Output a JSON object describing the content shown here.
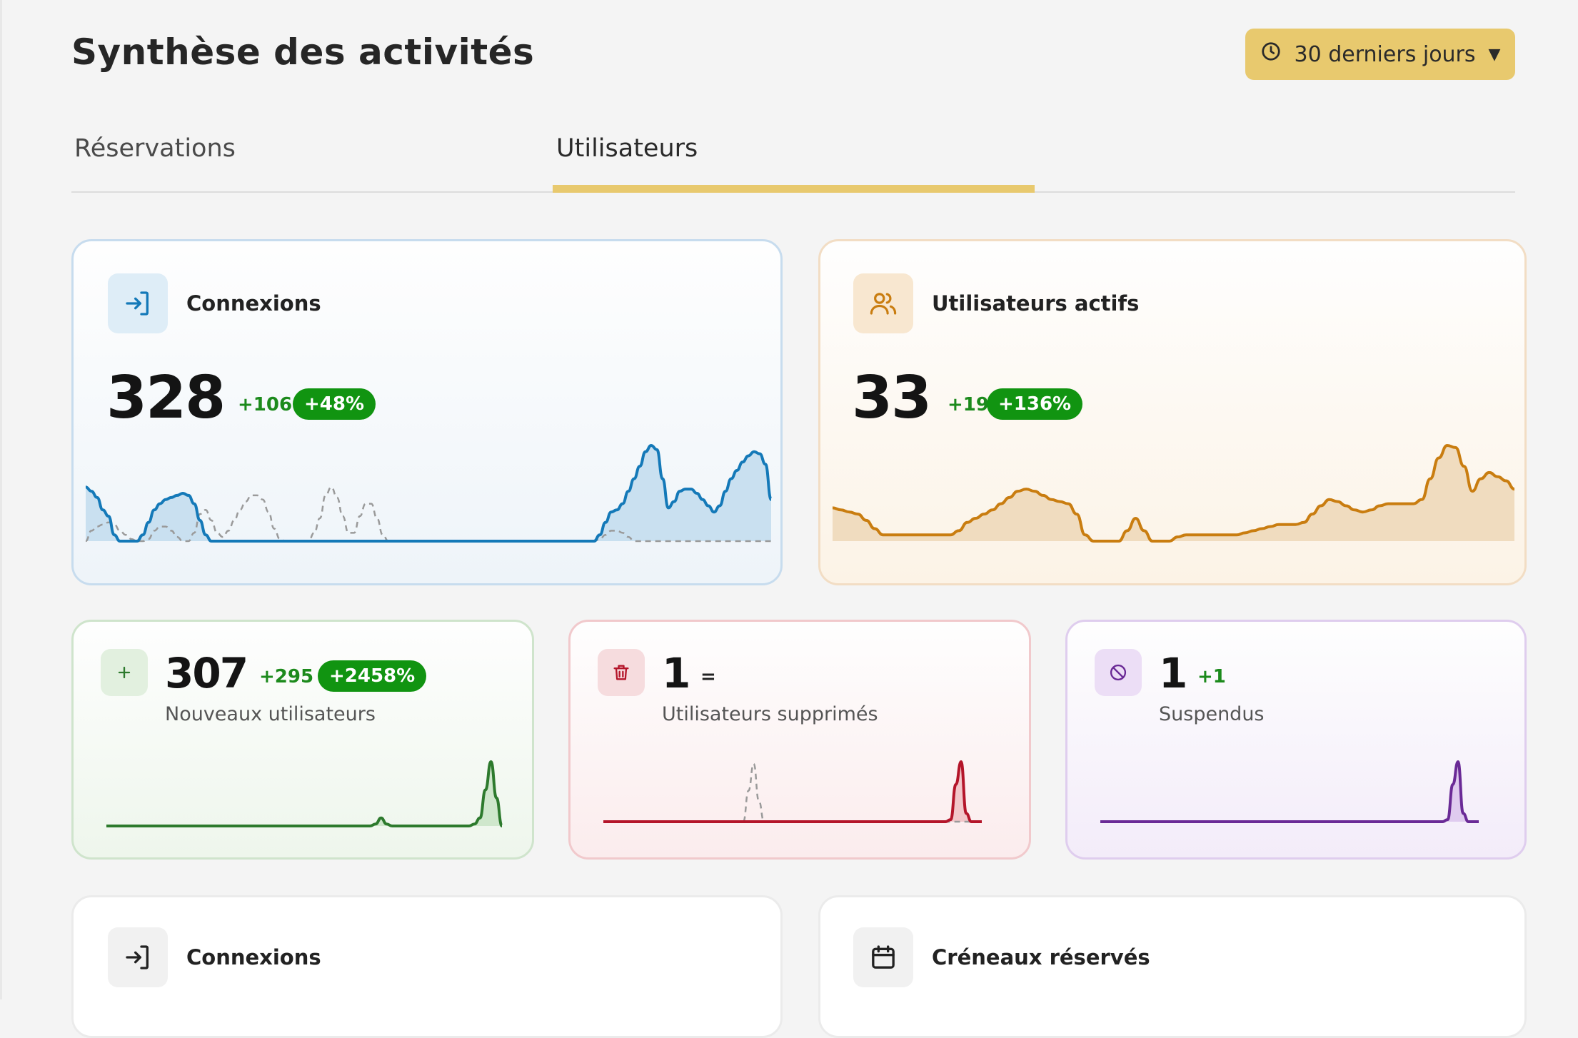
{
  "header": {
    "title": "Synthèse des activités",
    "period_label": "30 derniers jours"
  },
  "tabs": [
    {
      "label": "Réservations",
      "active": false
    },
    {
      "label": "Utilisateurs",
      "active": true
    }
  ],
  "accent_color": "#e8c96e",
  "cards": {
    "connexions": {
      "title": "Connexions",
      "icon": "login-icon",
      "value": "328",
      "delta": "+106",
      "pct": "+48%",
      "color": "#1479b8",
      "fill": "#c9e0f0",
      "series": [
        52,
        48,
        42,
        30,
        24,
        6,
        0,
        0,
        0,
        0,
        6,
        18,
        30,
        36,
        40,
        42,
        44,
        46,
        44,
        36,
        20,
        6,
        0,
        0,
        0,
        0,
        0,
        0,
        0,
        0,
        0,
        0,
        0,
        0,
        0,
        0,
        0,
        0,
        0,
        0,
        0,
        0,
        0,
        0,
        0,
        0,
        0,
        0,
        0,
        0,
        0,
        0,
        0,
        0,
        0,
        0,
        0,
        0,
        0,
        0,
        0,
        0,
        0,
        0,
        0,
        0,
        0,
        0,
        0,
        0,
        0,
        0,
        0,
        0,
        0,
        0,
        0,
        0,
        0,
        0,
        0,
        0,
        0,
        0,
        0,
        0,
        0,
        0,
        0,
        0,
        6,
        18,
        28,
        30,
        36,
        48,
        60,
        72,
        86,
        92,
        88,
        60,
        32,
        38,
        48,
        50,
        50,
        46,
        40,
        34,
        28,
        34,
        48,
        60,
        68,
        76,
        82,
        86,
        84,
        74,
        40
      ],
      "previous": [
        0,
        10,
        14,
        16,
        18,
        16,
        10,
        6,
        2,
        0,
        0,
        2,
        10,
        14,
        14,
        10,
        4,
        0,
        0,
        8,
        26,
        30,
        20,
        8,
        4,
        10,
        20,
        30,
        38,
        44,
        44,
        40,
        28,
        12,
        2,
        0,
        0,
        0,
        0,
        0,
        8,
        22,
        44,
        52,
        42,
        24,
        8,
        8,
        24,
        36,
        36,
        22,
        6,
        0,
        0,
        0,
        0,
        0,
        0,
        0,
        0,
        0,
        0,
        0,
        0,
        0,
        0,
        0,
        0,
        0,
        0,
        0,
        0,
        0,
        0,
        0,
        0,
        0,
        0,
        0,
        0,
        0,
        0,
        0,
        0,
        0,
        0,
        0,
        0,
        0,
        2,
        6,
        10,
        10,
        8,
        4,
        0,
        0,
        0,
        0,
        0,
        0,
        0,
        0,
        0,
        0,
        0,
        0,
        0,
        0,
        0,
        0,
        0,
        0,
        0,
        0,
        0,
        0,
        0,
        0,
        0
      ]
    },
    "actifs": {
      "title": "Utilisateurs actifs",
      "icon": "users-icon",
      "value": "33",
      "delta": "+19",
      "pct": "+136%",
      "color": "#c97d10",
      "fill": "#f0dcbf",
      "series": [
        32,
        30,
        28,
        26,
        20,
        12,
        6,
        6,
        6,
        6,
        6,
        6,
        6,
        6,
        6,
        10,
        18,
        22,
        26,
        30,
        36,
        42,
        48,
        50,
        48,
        44,
        40,
        38,
        36,
        26,
        6,
        0,
        0,
        0,
        0,
        10,
        22,
        10,
        0,
        0,
        0,
        4,
        6,
        6,
        6,
        6,
        6,
        6,
        6,
        8,
        10,
        12,
        14,
        16,
        16,
        16,
        18,
        26,
        34,
        40,
        38,
        34,
        30,
        28,
        30,
        34,
        36,
        36,
        36,
        36,
        40,
        60,
        80,
        92,
        90,
        72,
        48,
        60,
        66,
        62,
        58,
        50
      ]
    },
    "nouveaux": {
      "label": "Nouveaux utilisateurs",
      "icon": "plus-icon",
      "value": "307",
      "delta": "+295",
      "pct": "+2458%",
      "color": "#2d7a2d",
      "fill": "#cfe7cc",
      "series": [
        0,
        0,
        0,
        0,
        0,
        0,
        0,
        0,
        0,
        0,
        0,
        0,
        0,
        0,
        0,
        0,
        0,
        0,
        0,
        0,
        0,
        0,
        0,
        0,
        0,
        0,
        0,
        0,
        0,
        0,
        0,
        0,
        0,
        0,
        0,
        0,
        0,
        0,
        0,
        0,
        0,
        0,
        0,
        0,
        0,
        0,
        0,
        0,
        0,
        2,
        8,
        2,
        0,
        0,
        0,
        0,
        0,
        0,
        0,
        0,
        0,
        0,
        0,
        0,
        0,
        0,
        0,
        2,
        8,
        36,
        64,
        28,
        0
      ]
    },
    "supprimes": {
      "label": "Utilisateurs supprimés",
      "icon": "trash-icon",
      "value": "1",
      "delta": "=",
      "color": "#b4152a",
      "fill": "#f2c7ca",
      "series": [
        0,
        0,
        0,
        0,
        0,
        0,
        0,
        0,
        0,
        0,
        0,
        0,
        0,
        0,
        0,
        0,
        0,
        0,
        0,
        0,
        0,
        0,
        0,
        0,
        0,
        0,
        0,
        0,
        0,
        0,
        0,
        0,
        0,
        0,
        0,
        0,
        0,
        0,
        0,
        0,
        0,
        0,
        0,
        0,
        0,
        0,
        0,
        0,
        0,
        0,
        0,
        0,
        0,
        0,
        0,
        0,
        0,
        0,
        0,
        0,
        0,
        0,
        0,
        0,
        0,
        0,
        0,
        2,
        36,
        58,
        8,
        0,
        0,
        0
      ],
      "previous": [
        0,
        0,
        0,
        0,
        0,
        0,
        0,
        0,
        0,
        0,
        0,
        0,
        0,
        0,
        0,
        0,
        0,
        0,
        0,
        0,
        0,
        0,
        0,
        0,
        0,
        0,
        0,
        0,
        30,
        56,
        20,
        0,
        0,
        0,
        0,
        0,
        0,
        0,
        0,
        0,
        0,
        0,
        0,
        0,
        0,
        0,
        0,
        0,
        0,
        0,
        0,
        0,
        0,
        0,
        0,
        0,
        0,
        0,
        0,
        0,
        0,
        0,
        0,
        0,
        0,
        0,
        0,
        0,
        0,
        0,
        0,
        0,
        0,
        0
      ]
    },
    "suspendus": {
      "label": "Suspendus",
      "icon": "ban-icon",
      "value": "1",
      "delta": "+1",
      "color": "#6a2a96",
      "fill": "#dfcbef",
      "series": [
        0,
        0,
        0,
        0,
        0,
        0,
        0,
        0,
        0,
        0,
        0,
        0,
        0,
        0,
        0,
        0,
        0,
        0,
        0,
        0,
        0,
        0,
        0,
        0,
        0,
        0,
        0,
        0,
        0,
        0,
        0,
        0,
        0,
        0,
        0,
        0,
        0,
        0,
        0,
        0,
        0,
        0,
        0,
        0,
        0,
        0,
        0,
        0,
        0,
        0,
        0,
        0,
        0,
        0,
        0,
        0,
        0,
        0,
        0,
        0,
        0,
        0,
        0,
        0,
        0,
        0,
        0,
        2,
        36,
        58,
        8,
        0,
        0,
        0
      ]
    },
    "connexions_bottom": {
      "title": "Connexions",
      "icon": "login-icon"
    },
    "creneaux": {
      "title": "Créneaux réservés",
      "icon": "calendar-icon"
    }
  }
}
